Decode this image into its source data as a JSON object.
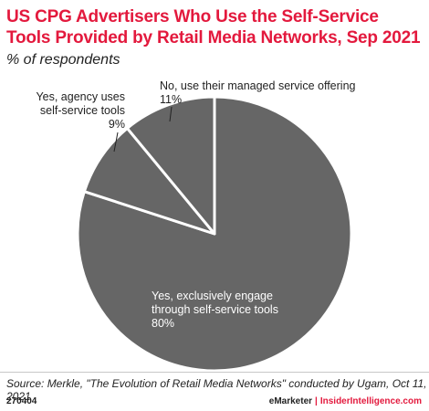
{
  "chart_data": {
    "type": "pie",
    "title": "US CPG Advertisers Who Use the Self-Service Tools Provided by Retail Media Networks, Sep 2021",
    "subtitle": "% of respondents",
    "slices": [
      {
        "label_lines": [
          "Yes, exclusively engage",
          "through self-service tools"
        ],
        "value_label": "80%",
        "value": 80
      },
      {
        "label_lines": [
          "Yes, agency uses",
          "self-service tools"
        ],
        "value_label": "9%",
        "value": 9
      },
      {
        "label_lines": [
          "No, use their managed service offering"
        ],
        "value_label": "11%",
        "value": 11
      }
    ],
    "slice_color": "#666666",
    "border_color": "#ffffff"
  },
  "footer": {
    "source": "Source: Merkle, \"The Evolution of Retail Media Networks\" conducted by Ugam, Oct 11, 2021",
    "chart_id": "270404",
    "brand_left": "eMarketer",
    "brand_sep": "|",
    "brand_right": "InsiderIntelligence.com"
  },
  "colors": {
    "accent": "#e3193d"
  }
}
